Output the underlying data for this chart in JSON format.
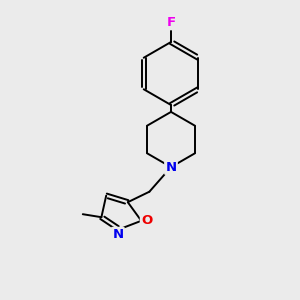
{
  "background_color": "#ebebeb",
  "bond_color": "#000000",
  "atom_colors": {
    "F": "#ee00ee",
    "N": "#0000ee",
    "O": "#ee0000",
    "C": "#000000"
  },
  "figsize": [
    3.0,
    3.0
  ],
  "dpi": 100,
  "lw": 1.4,
  "fontsize": 9.5
}
